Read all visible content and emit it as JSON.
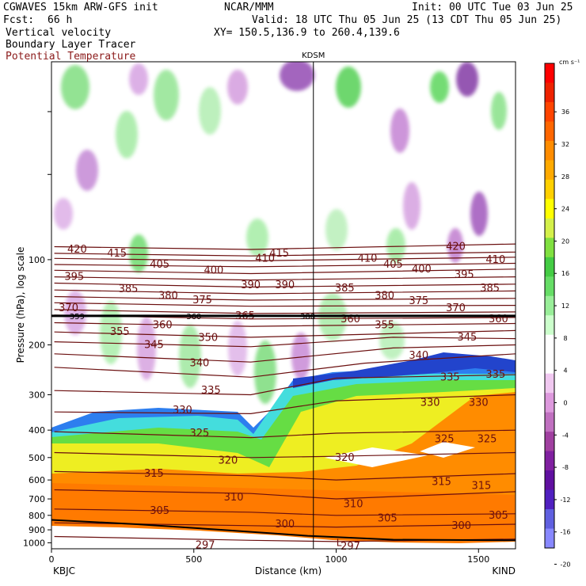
{
  "header": {
    "model_line": "CGWAVES 15km ARW-GFS init",
    "org": "NCAR/MMM",
    "init": "Init: 00 UTC Tue 03 Jun 25",
    "fcst_label": "Fcst:",
    "fcst_value": "66 h",
    "valid": "Valid: 18 UTC Thu 05 Jun 25 (13 CDT Thu 05 Jun 25)",
    "field1": "Vertical velocity",
    "field2": "Boundary Layer Tracer",
    "field3": "Potential Temperature",
    "xy": "XY= 150.5,136.9 to 260.4,139.6",
    "field3_color": "#8b1a1a"
  },
  "chart_data": {
    "type": "heatmap",
    "title": "",
    "xlabel": "Distance (km)",
    "ylabel": "Pressure (hPa), log scale",
    "x_ticks": [
      0,
      500,
      1000,
      1500
    ],
    "x_range": [
      0,
      1630
    ],
    "y_ticks": [
      100,
      200,
      300,
      400,
      500,
      600,
      700,
      800,
      900,
      1000
    ],
    "y_scale": "log",
    "y_range": [
      1050,
      20
    ],
    "start_station": "KBJC",
    "end_station": "KIND",
    "marker_station": "KDSM",
    "marker_distance_km": 920,
    "colorbar": {
      "units": "cm s⁻¹",
      "labels": [
        36,
        32,
        28,
        24,
        20,
        16,
        12,
        8,
        4,
        0,
        -4,
        -8,
        -12,
        -16,
        -20
      ],
      "colors": [
        "#ff0000",
        "#ee2200",
        "#ff4400",
        "#ff6600",
        "#ff8c00",
        "#ffaa00",
        "#ffd000",
        "#ffff00",
        "#d4f04a",
        "#80e040",
        "#44cc44",
        "#66dd66",
        "#99ee99",
        "#ccffcc",
        "#ffffff",
        "#ffffff",
        "#f0c8f0",
        "#dd99dd",
        "#c070c0",
        "#a040a0",
        "#8020a0",
        "#6010a0",
        "#5020c0",
        "#6060e0",
        "#8888ff"
      ]
    },
    "theta_contours": [
      {
        "value": "420",
        "pts": [
          [
            10,
            90
          ],
          [
            700,
            92
          ],
          [
            1630,
            88
          ]
        ],
        "labels": [
          [
            90,
            92
          ],
          [
            1420,
            90
          ]
        ]
      },
      {
        "value": "415",
        "pts": [
          [
            10,
            95
          ],
          [
            700,
            97
          ],
          [
            1630,
            94
          ]
        ],
        "labels": [
          [
            230,
            95
          ],
          [
            800,
            95
          ]
        ]
      },
      {
        "value": "410",
        "pts": [
          [
            10,
            99
          ],
          [
            700,
            101
          ],
          [
            1630,
            98
          ]
        ],
        "labels": [
          [
            750,
            99
          ],
          [
            1110,
            99
          ],
          [
            1560,
            100
          ]
        ]
      },
      {
        "value": "405",
        "pts": [
          [
            10,
            104
          ],
          [
            700,
            106
          ],
          [
            1630,
            103
          ]
        ],
        "labels": [
          [
            380,
            104
          ],
          [
            1200,
            104
          ]
        ]
      },
      {
        "value": "400",
        "pts": [
          [
            10,
            109
          ],
          [
            700,
            112
          ],
          [
            1630,
            108
          ]
        ],
        "labels": [
          [
            570,
            109
          ],
          [
            1300,
            108
          ]
        ]
      },
      {
        "value": "395",
        "pts": [
          [
            10,
            115
          ],
          [
            700,
            118
          ],
          [
            1630,
            115
          ]
        ],
        "labels": [
          [
            80,
            115
          ],
          [
            1450,
            113
          ]
        ]
      },
      {
        "value": "390",
        "pts": [
          [
            10,
            121
          ],
          [
            700,
            125
          ],
          [
            1630,
            122
          ]
        ],
        "labels": [
          [
            700,
            123
          ],
          [
            820,
            123
          ]
        ]
      },
      {
        "value": "385",
        "pts": [
          [
            10,
            128
          ],
          [
            700,
            132
          ],
          [
            1630,
            129
          ]
        ],
        "labels": [
          [
            270,
            127
          ],
          [
            1030,
            126
          ],
          [
            1540,
            126
          ]
        ]
      },
      {
        "value": "380",
        "pts": [
          [
            10,
            135
          ],
          [
            700,
            139
          ],
          [
            1630,
            137
          ]
        ],
        "labels": [
          [
            410,
            134
          ],
          [
            1170,
            134
          ]
        ]
      },
      {
        "value": "375",
        "pts": [
          [
            10,
            142
          ],
          [
            700,
            146
          ],
          [
            1630,
            145
          ]
        ],
        "labels": [
          [
            530,
            139
          ],
          [
            1290,
            140
          ]
        ]
      },
      {
        "value": "370",
        "pts": [
          [
            10,
            150
          ],
          [
            700,
            155
          ],
          [
            1630,
            153
          ]
        ],
        "labels": [
          [
            60,
            148
          ],
          [
            1420,
            148
          ]
        ]
      },
      {
        "value": "365",
        "pts": [
          [
            10,
            157
          ],
          [
            700,
            162
          ],
          [
            1630,
            160
          ]
        ],
        "labels": [
          [
            680,
            158
          ]
        ]
      },
      {
        "value": "360",
        "pts": [
          [
            10,
            167
          ],
          [
            700,
            172
          ],
          [
            1630,
            168
          ]
        ],
        "labels": [
          [
            390,
            170
          ],
          [
            1050,
            162
          ],
          [
            1570,
            162
          ]
        ]
      },
      {
        "value": "355",
        "pts": [
          [
            10,
            180
          ],
          [
            700,
            188
          ],
          [
            1630,
            178
          ]
        ],
        "labels": [
          [
            240,
            180
          ],
          [
            1170,
            170
          ]
        ]
      },
      {
        "value": "350",
        "pts": [
          [
            10,
            195
          ],
          [
            700,
            203
          ],
          [
            1200,
            188
          ],
          [
            1630,
            190
          ]
        ],
        "labels": [
          [
            550,
            189
          ]
        ]
      },
      {
        "value": "345",
        "pts": [
          [
            10,
            215
          ],
          [
            700,
            230
          ],
          [
            1200,
            205
          ],
          [
            1630,
            200
          ]
        ],
        "labels": [
          [
            360,
            200
          ],
          [
            1460,
            188
          ]
        ]
      },
      {
        "value": "340",
        "pts": [
          [
            10,
            240
          ],
          [
            700,
            260
          ],
          [
            1100,
            232
          ],
          [
            1630,
            215
          ]
        ],
        "labels": [
          [
            520,
            232
          ],
          [
            1290,
            218
          ]
        ]
      },
      {
        "value": "335",
        "pts": [
          [
            10,
            290
          ],
          [
            700,
            300
          ],
          [
            1000,
            262
          ],
          [
            1630,
            255
          ]
        ],
        "labels": [
          [
            560,
            290
          ],
          [
            1400,
            260
          ],
          [
            1560,
            255
          ]
        ]
      },
      {
        "value": "330",
        "pts": [
          [
            10,
            345
          ],
          [
            700,
            350
          ],
          [
            1000,
            315
          ],
          [
            1630,
            300
          ]
        ],
        "labels": [
          [
            460,
            340
          ],
          [
            1330,
            320
          ],
          [
            1500,
            320
          ]
        ]
      },
      {
        "value": "325",
        "pts": [
          [
            10,
            405
          ],
          [
            700,
            425
          ],
          [
            1000,
            410
          ],
          [
            1630,
            400
          ]
        ],
        "labels": [
          [
            520,
            410
          ],
          [
            1380,
            430
          ],
          [
            1530,
            430
          ]
        ]
      },
      {
        "value": "320",
        "pts": [
          [
            10,
            480
          ],
          [
            700,
            500
          ],
          [
            1000,
            495
          ],
          [
            1630,
            480
          ]
        ],
        "labels": [
          [
            620,
            512
          ],
          [
            1030,
            500
          ]
        ]
      },
      {
        "value": "315",
        "pts": [
          [
            10,
            560
          ],
          [
            700,
            580
          ],
          [
            1000,
            600
          ],
          [
            1630,
            570
          ]
        ],
        "labels": [
          [
            360,
            570
          ],
          [
            1370,
            610
          ],
          [
            1510,
            630
          ]
        ]
      },
      {
        "value": "310",
        "pts": [
          [
            10,
            650
          ],
          [
            700,
            670
          ],
          [
            1000,
            700
          ],
          [
            1630,
            660
          ]
        ],
        "labels": [
          [
            640,
            690
          ],
          [
            1060,
            730
          ]
        ]
      },
      {
        "value": "305",
        "pts": [
          [
            10,
            760
          ],
          [
            700,
            780
          ],
          [
            1000,
            800
          ],
          [
            1630,
            790
          ]
        ],
        "labels": [
          [
            380,
            770
          ],
          [
            1180,
            820
          ],
          [
            1570,
            800
          ]
        ]
      },
      {
        "value": "300",
        "pts": [
          [
            10,
            850
          ],
          [
            700,
            870
          ],
          [
            1000,
            880
          ],
          [
            1630,
            860
          ]
        ],
        "labels": [
          [
            820,
            860
          ],
          [
            1440,
            870
          ]
        ]
      },
      {
        "value": "297",
        "pts": [
          [
            10,
            950
          ],
          [
            700,
            980
          ],
          [
            1000,
            990
          ],
          [
            1630,
            970
          ]
        ],
        "labels": [
          [
            540,
            1020
          ],
          [
            1050,
            1030
          ]
        ]
      }
    ],
    "tropopause_hPa": 158,
    "tropopause_labels": [
      {
        "value": "359",
        "x": 90
      },
      {
        "value": "360",
        "x": 500
      },
      {
        "value": "388",
        "x": 900
      }
    ],
    "lows": [
      {
        "label": "L",
        "x": 1010,
        "p": 1000
      }
    ],
    "terrain_hPa": [
      [
        0,
        830
      ],
      [
        300,
        860
      ],
      [
        600,
        900
      ],
      [
        900,
        945
      ],
      [
        1200,
        975
      ],
      [
        1630,
        980
      ]
    ]
  }
}
